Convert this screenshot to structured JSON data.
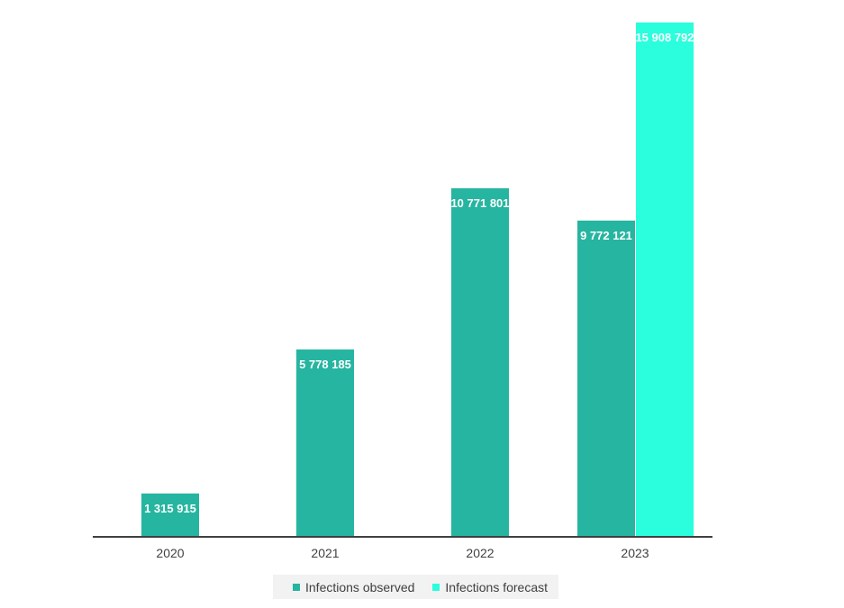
{
  "chart_data": {
    "type": "bar",
    "categories": [
      "2020",
      "2021",
      "2022",
      "2023"
    ],
    "series": [
      {
        "name": "Infections observed",
        "color": "#26b5a0",
        "values": [
          1315915,
          5778185,
          10771801,
          9772121
        ],
        "labels": [
          "1 315 915",
          "5 778 185",
          "10 771 801",
          "9 772 121"
        ]
      },
      {
        "name": "Infections forecast",
        "color": "#2afedd",
        "values": [
          null,
          null,
          null,
          15908792
        ],
        "labels": [
          "",
          "",
          "",
          "15 908 792"
        ]
      }
    ],
    "ylim": [
      0,
      15908792
    ],
    "grid": false,
    "legend_position": "bottom"
  }
}
